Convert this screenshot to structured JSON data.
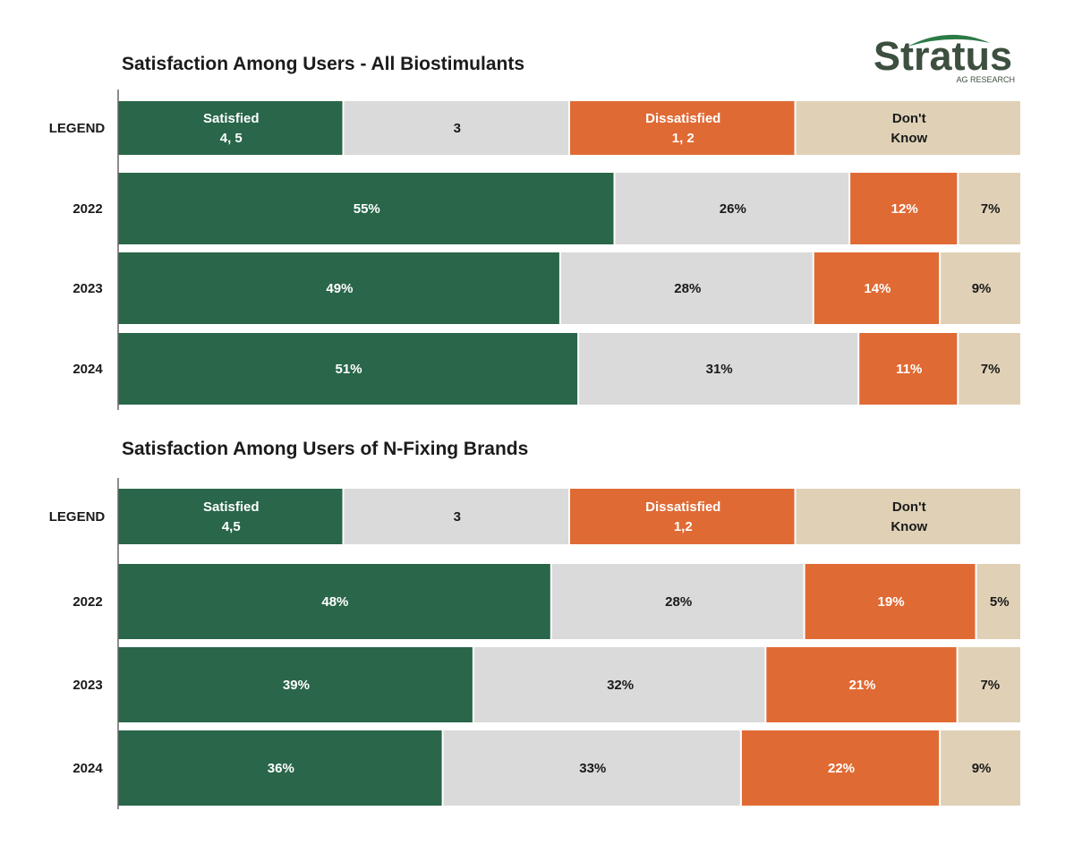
{
  "logo": {
    "word": "Stratus",
    "subtitle": "AG RESEARCH"
  },
  "colors": {
    "satisfied": "#29664a",
    "neutral": "#dadada",
    "dissatisfied": "#e06a34",
    "dont_know": "#e0d1b6",
    "axis": "#666666"
  },
  "chart_data": [
    {
      "type": "bar",
      "orientation": "horizontal",
      "stacked": true,
      "normalized": true,
      "title": "Satisfaction Among Users - All Biostimulants",
      "legend_row": {
        "label": "LEGEND",
        "entries": [
          {
            "lines": [
              "Satisfied",
              "4, 5"
            ]
          },
          {
            "lines": [
              "3"
            ]
          },
          {
            "lines": [
              "Dissatisfied",
              "1, 2"
            ]
          },
          {
            "lines": [
              "Don't",
              "Know"
            ]
          }
        ]
      },
      "categories": [
        "2022",
        "2023",
        "2024"
      ],
      "series": [
        {
          "values": [
            55,
            49,
            51
          ]
        },
        {
          "values": [
            26,
            28,
            31
          ]
        },
        {
          "values": [
            12,
            14,
            11
          ]
        },
        {
          "values": [
            7,
            9,
            7
          ]
        }
      ],
      "value_suffix": "%",
      "legend": "top row"
    },
    {
      "type": "bar",
      "orientation": "horizontal",
      "stacked": true,
      "normalized": true,
      "title": "Satisfaction Among Users of N-Fixing Brands",
      "legend_row": {
        "label": "LEGEND",
        "entries": [
          {
            "lines": [
              "Satisfied",
              "4,5"
            ]
          },
          {
            "lines": [
              "3"
            ]
          },
          {
            "lines": [
              "Dissatisfied",
              "1,2"
            ]
          },
          {
            "lines": [
              "Don't",
              "Know"
            ]
          }
        ]
      },
      "categories": [
        "2022",
        "2023",
        "2024"
      ],
      "series": [
        {
          "values": [
            48,
            39,
            36
          ]
        },
        {
          "values": [
            28,
            32,
            33
          ]
        },
        {
          "values": [
            19,
            21,
            22
          ]
        },
        {
          "values": [
            5,
            7,
            9
          ]
        }
      ],
      "value_suffix": "%",
      "legend": "top row"
    }
  ]
}
